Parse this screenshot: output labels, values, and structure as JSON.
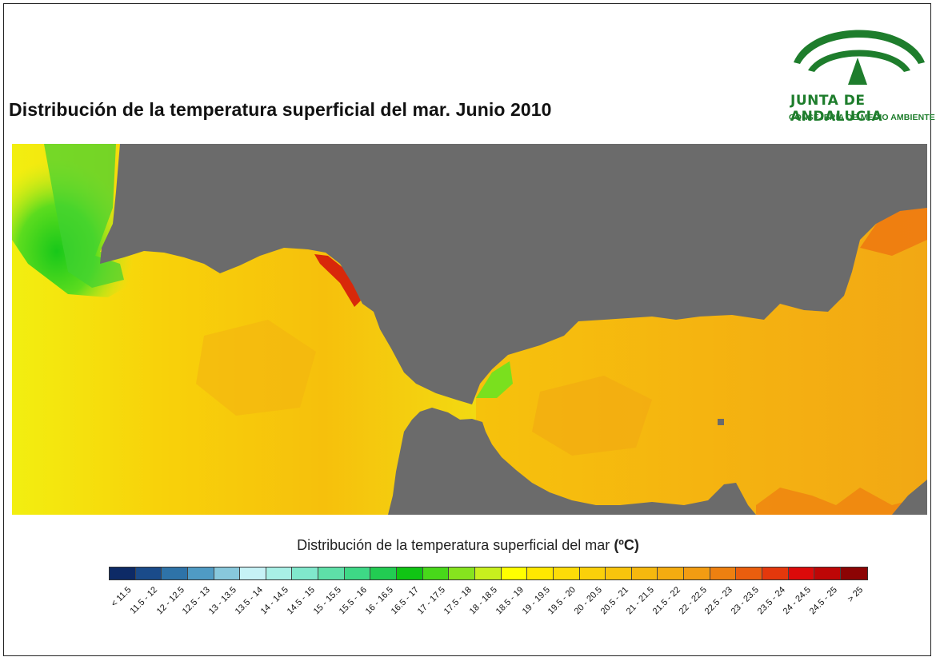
{
  "title": "Distribución de la temperatura superficial del mar. Junio 2010",
  "logo": {
    "name": "JUNTA DE ANDALUCIA",
    "subtitle": "CONSEJERÍA DE MEDIO AMBIENTE",
    "color": "#1e7d2c"
  },
  "map": {
    "land_color": "#6b6b6b"
  },
  "legend": {
    "title": "Distribución de la temperatura superficial del mar",
    "unit": "(ºC)",
    "classes": [
      {
        "label": "< 11.5",
        "color": "#0d2a66"
      },
      {
        "label": "11.5 - 12",
        "color": "#1a4b8a"
      },
      {
        "label": "12 - 12.5",
        "color": "#2e73a8"
      },
      {
        "label": "12.5 - 13",
        "color": "#4f9bc4"
      },
      {
        "label": "13 - 13.5",
        "color": "#88c8dc"
      },
      {
        "label": "13.5 - 14",
        "color": "#c6f2f6"
      },
      {
        "label": "14 - 14.5",
        "color": "#a8f0e6"
      },
      {
        "label": "14.5 - 15",
        "color": "#80e8cc"
      },
      {
        "label": "15 - 15.5",
        "color": "#5ee0a8"
      },
      {
        "label": "15.5 - 16",
        "color": "#3ed886"
      },
      {
        "label": "16 - 16.5",
        "color": "#22cc52"
      },
      {
        "label": "16.5 - 17",
        "color": "#10c414"
      },
      {
        "label": "17 - 17.5",
        "color": "#48d81a"
      },
      {
        "label": "17.5 - 18",
        "color": "#86e41e"
      },
      {
        "label": "18 - 18.5",
        "color": "#c8f01e"
      },
      {
        "label": "18.5 - 19",
        "color": "#ffff00"
      },
      {
        "label": "19 - 19.5",
        "color": "#ffe800"
      },
      {
        "label": "19.5 - 20",
        "color": "#fddc08"
      },
      {
        "label": "20 - 20.5",
        "color": "#fad00a"
      },
      {
        "label": "20.5 - 21",
        "color": "#f8c40c"
      },
      {
        "label": "21 - 21.5",
        "color": "#f6b80e"
      },
      {
        "label": "21.5 - 22",
        "color": "#f4ac10"
      },
      {
        "label": "22 - 22.5",
        "color": "#f29c12"
      },
      {
        "label": "22.5 - 23",
        "color": "#ee8010"
      },
      {
        "label": "23 - 23.5",
        "color": "#ea5e0e"
      },
      {
        "label": "23.5 - 24",
        "color": "#e4380c"
      },
      {
        "label": "24 - 24.5",
        "color": "#dc0a0a"
      },
      {
        "label": "24.5 - 25",
        "color": "#be0606"
      },
      {
        "label": "> 25",
        "color": "#8c0404"
      }
    ]
  }
}
